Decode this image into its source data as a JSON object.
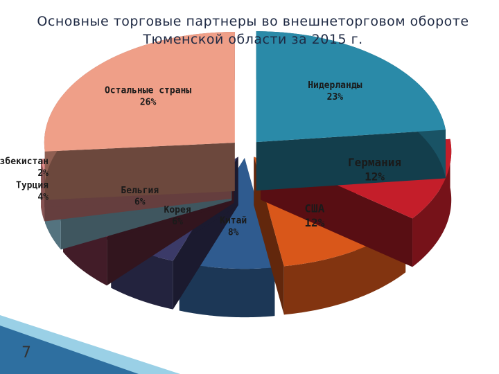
{
  "chart_data": {
    "type": "pie",
    "title": "Основные торговые партнеры во внешнеторговом обороте  Тюменской области за 2015 г.",
    "categories": [
      "Нидерланды",
      "Германия",
      "США",
      "Китай",
      "Корея",
      "Бельгия",
      "Турция",
      "Узбекистан",
      "Остальные страны"
    ],
    "values": [
      23,
      12,
      12,
      8,
      6,
      6,
      4,
      2,
      26
    ],
    "value_labels": [
      "23%",
      "12%",
      "12%",
      "8%",
      "6%",
      "6%",
      "4%",
      "2%",
      "26%"
    ],
    "colors": [
      "#2a8aa8",
      "#c41e2a",
      "#d9571a",
      "#2f5b8f",
      "#3b3a68",
      "#6e2f42",
      "#8cc0d4",
      "#e08a8a",
      "#ef9f88"
    ]
  },
  "slide_number": "7"
}
